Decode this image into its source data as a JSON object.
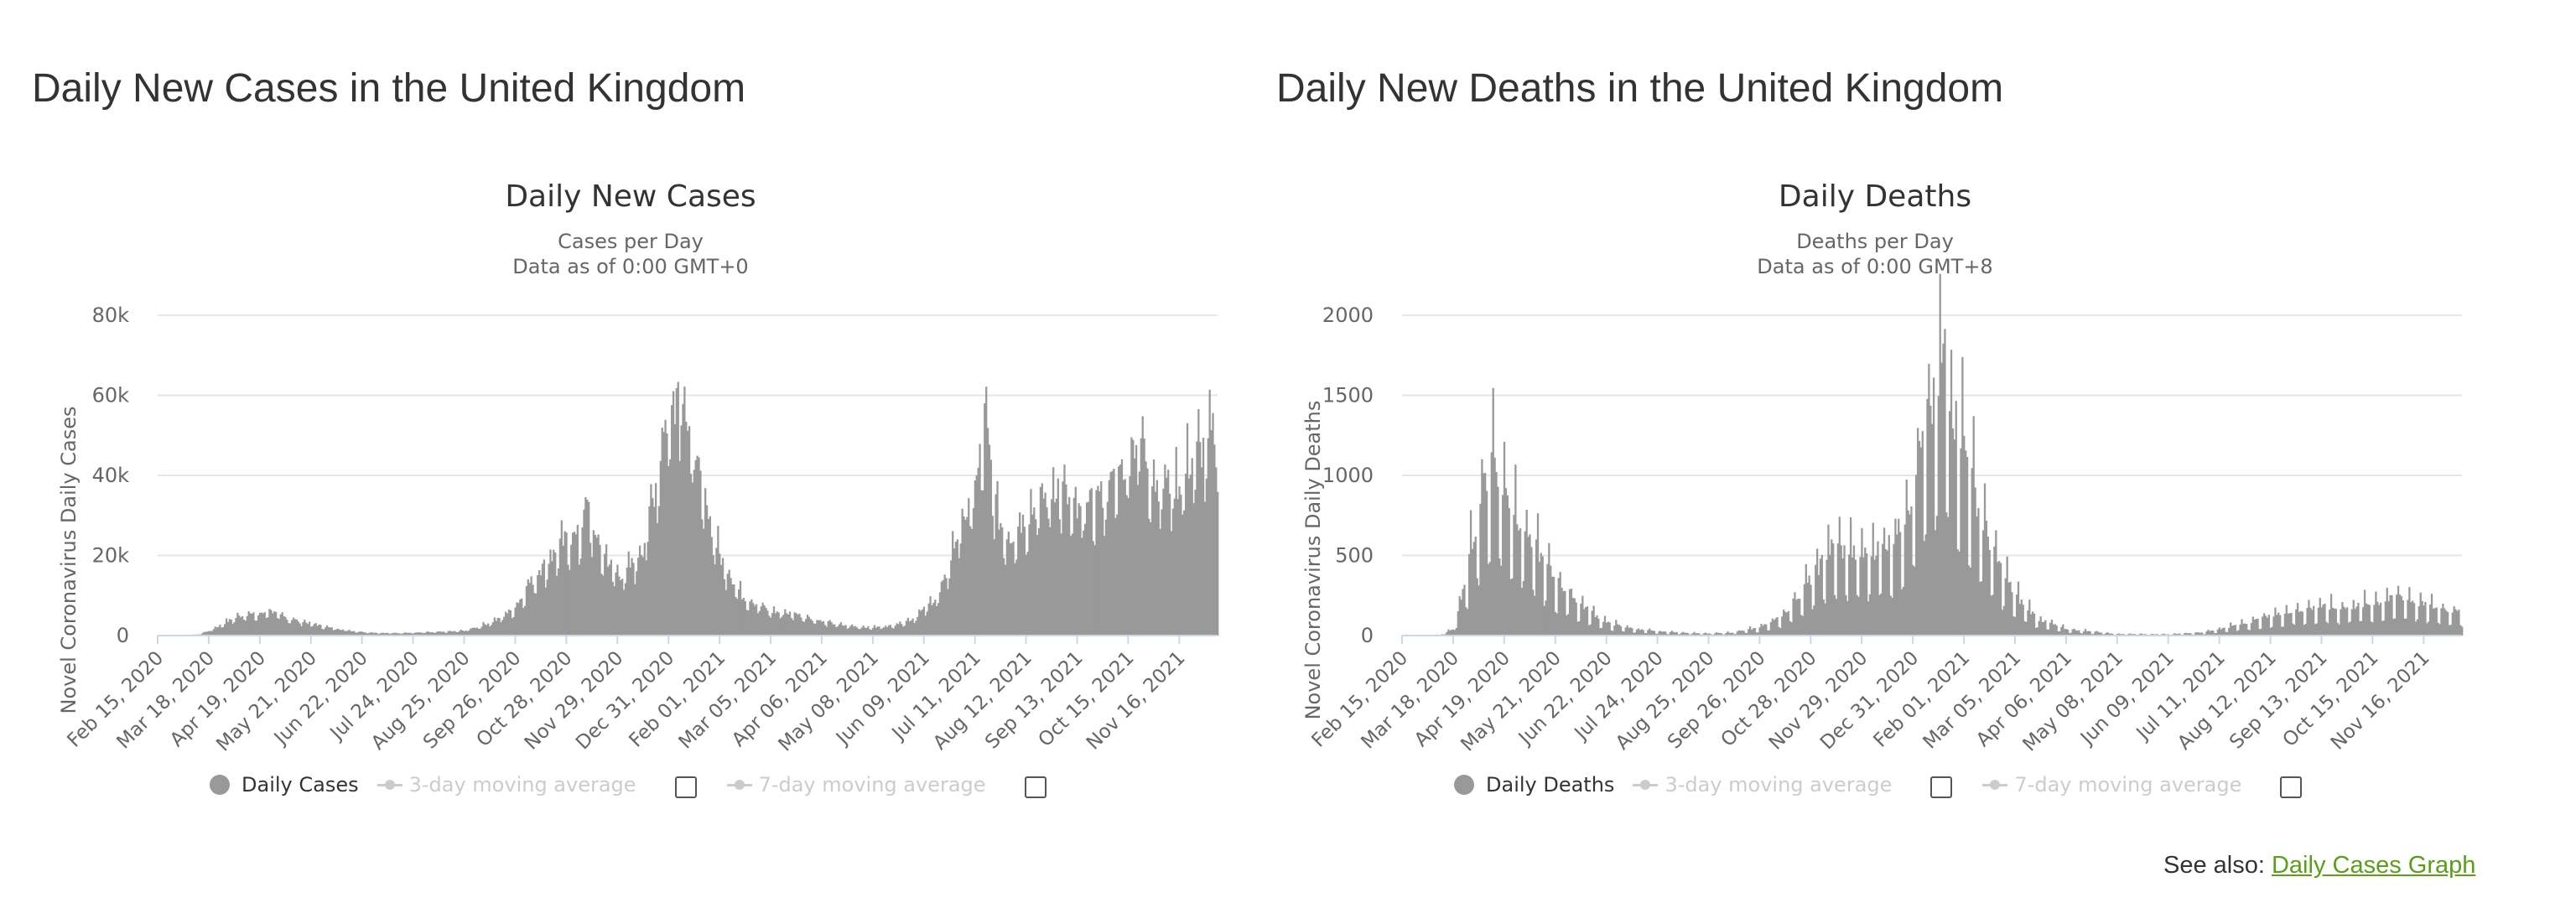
{
  "cases_panel": {
    "heading": "Daily New Cases in the United Kingdom",
    "legend": {
      "daily": "Daily Cases",
      "avg3": "3-day moving average",
      "avg7": "7-day moving average"
    }
  },
  "deaths_panel": {
    "heading": "Daily New Deaths in the United Kingdom",
    "legend": {
      "daily": "Daily Deaths",
      "avg3": "3-day moving average",
      "avg7": "7-day moving average"
    }
  },
  "see_also": {
    "prefix": "See also:",
    "link": "Daily Cases Graph"
  },
  "colors": {
    "bars": "#999999",
    "grid": "#e6e6e6",
    "axis_text": "#666666",
    "title_text": "#333333",
    "link": "#5a9e1a",
    "inactive_legend": "#cccccc"
  },
  "chart_data": [
    {
      "type": "bar",
      "title": "Daily New Cases",
      "subtitle": [
        "Cases per Day",
        "Data as of 0:00 GMT+0"
      ],
      "xlabel": "",
      "ylabel": "Novel Coronavirus Daily Cases",
      "ylim": [
        0,
        80000
      ],
      "yticks": [
        0,
        20000,
        40000,
        60000,
        80000
      ],
      "ytick_labels": [
        "0",
        "20k",
        "40k",
        "60k",
        "80k"
      ],
      "x_range": [
        "Feb 15, 2020",
        "Dec 10, 2021"
      ],
      "xtick_labels": [
        "Feb 15, 2020",
        "Mar 18, 2020",
        "Apr 19, 2020",
        "May 21, 2020",
        "Jun 22, 2020",
        "Jul 24, 2020",
        "Aug 25, 2020",
        "Sep 26, 2020",
        "Oct 28, 2020",
        "Nov 29, 2020",
        "Dec 31, 2020",
        "Feb 01, 2021",
        "Mar 05, 2021",
        "Apr 06, 2021",
        "May 08, 2021",
        "Jun 09, 2021",
        "Jul 11, 2021",
        "Aug 12, 2021",
        "Sep 13, 2021",
        "Oct 15, 2021",
        "Nov 16, 2021"
      ],
      "grid": true,
      "legend": "bottom",
      "series": [
        {
          "name": "Daily Cases",
          "points": [
            [
              "Feb 15, 2020",
              0
            ],
            [
              "Mar 01, 2020",
              20
            ],
            [
              "Mar 12, 2020",
              300
            ],
            [
              "Mar 20, 2020",
              1500
            ],
            [
              "Apr 01, 2020",
              4000
            ],
            [
              "Apr 10, 2020",
              5500
            ],
            [
              "Apr 19, 2020",
              5000
            ],
            [
              "Apr 24, 2020",
              6500
            ],
            [
              "May 01, 2020",
              5000
            ],
            [
              "May 10, 2020",
              4000
            ],
            [
              "May 21, 2020",
              3000
            ],
            [
              "Jun 01, 2020",
              2000
            ],
            [
              "Jun 15, 2020",
              1200
            ],
            [
              "Jun 22, 2020",
              900
            ],
            [
              "Jul 05, 2020",
              600
            ],
            [
              "Jul 24, 2020",
              700
            ],
            [
              "Aug 10, 2020",
              900
            ],
            [
              "Aug 25, 2020",
              1200
            ],
            [
              "Sep 05, 2020",
              2500
            ],
            [
              "Sep 15, 2020",
              4000
            ],
            [
              "Sep 26, 2020",
              7000
            ],
            [
              "Oct 05, 2020",
              13000
            ],
            [
              "Oct 15, 2020",
              18000
            ],
            [
              "Oct 28, 2020",
              24000
            ],
            [
              "Nov 05, 2020",
              25000
            ],
            [
              "Nov 10, 2020",
              33000
            ],
            [
              "Nov 15, 2020",
              24000
            ],
            [
              "Nov 29, 2020",
              15000
            ],
            [
              "Dec 05, 2020",
              16000
            ],
            [
              "Dec 15, 2020",
              22000
            ],
            [
              "Dec 22, 2020",
              36000
            ],
            [
              "Dec 29, 2020",
              53000
            ],
            [
              "Jan 04, 2021",
              60000
            ],
            [
              "Jan 08, 2021",
              68000
            ],
            [
              "Jan 12, 2021",
              52000
            ],
            [
              "Jan 20, 2021",
              38000
            ],
            [
              "Feb 01, 2021",
              20000
            ],
            [
              "Feb 15, 2021",
              10000
            ],
            [
              "Mar 05, 2021",
              6000
            ],
            [
              "Mar 20, 2021",
              5500
            ],
            [
              "Apr 06, 2021",
              3500
            ],
            [
              "Apr 20, 2021",
              2500
            ],
            [
              "May 08, 2021",
              2000
            ],
            [
              "May 20, 2021",
              2500
            ],
            [
              "Jun 01, 2021",
              4000
            ],
            [
              "Jun 09, 2021",
              6500
            ],
            [
              "Jun 20, 2021",
              11000
            ],
            [
              "Jul 01, 2021",
              27000
            ],
            [
              "Jul 11, 2021",
              35000
            ],
            [
              "Jul 17, 2021",
              54000
            ],
            [
              "Jul 25, 2021",
              30000
            ],
            [
              "Aug 01, 2021",
              24000
            ],
            [
              "Aug 12, 2021",
              30000
            ],
            [
              "Aug 25, 2021",
              35000
            ],
            [
              "Sep 01, 2021",
              38000
            ],
            [
              "Sep 13, 2021",
              30000
            ],
            [
              "Sep 25, 2021",
              34000
            ],
            [
              "Oct 01, 2021",
              36000
            ],
            [
              "Oct 15, 2021",
              44000
            ],
            [
              "Oct 21, 2021",
              51000
            ],
            [
              "Nov 01, 2021",
              38000
            ],
            [
              "Nov 16, 2021",
              38000
            ],
            [
              "Nov 25, 2021",
              45000
            ],
            [
              "Dec 05, 2021",
              48000
            ],
            [
              "Dec 10, 2021",
              54000
            ]
          ]
        }
      ]
    },
    {
      "type": "bar",
      "title": "Daily Deaths",
      "subtitle": [
        "Deaths per Day",
        "Data as of 0:00 GMT+8"
      ],
      "xlabel": "",
      "ylabel": "Novel Coronavirus Daily Deaths",
      "ylim": [
        0,
        2000
      ],
      "yticks": [
        0,
        500,
        1000,
        1500,
        2000
      ],
      "ytick_labels": [
        "0",
        "500",
        "1000",
        "1500",
        "2000"
      ],
      "x_range": [
        "Feb 15, 2020",
        "Dec 10, 2021"
      ],
      "xtick_labels": [
        "Feb 15, 2020",
        "Mar 18, 2020",
        "Apr 19, 2020",
        "May 21, 2020",
        "Jun 22, 2020",
        "Jul 24, 2020",
        "Aug 25, 2020",
        "Sep 26, 2020",
        "Oct 28, 2020",
        "Nov 29, 2020",
        "Dec 31, 2020",
        "Feb 01, 2021",
        "Mar 05, 2021",
        "Apr 06, 2021",
        "May 08, 2021",
        "Jun 09, 2021",
        "Jul 11, 2021",
        "Aug 12, 2021",
        "Sep 13, 2021",
        "Oct 15, 2021",
        "Nov 16, 2021"
      ],
      "grid": true,
      "legend": "bottom",
      "series": [
        {
          "name": "Daily Deaths",
          "points": [
            [
              "Feb 15, 2020",
              0
            ],
            [
              "Mar 10, 2020",
              5
            ],
            [
              "Mar 18, 2020",
              40
            ],
            [
              "Mar 25, 2020",
              300
            ],
            [
              "Apr 01, 2020",
              700
            ],
            [
              "Apr 08, 2020",
              1000
            ],
            [
              "Apr 12, 2020",
              1150
            ],
            [
              "Apr 19, 2020",
              900
            ],
            [
              "Apr 25, 2020",
              800
            ],
            [
              "May 05, 2020",
              600
            ],
            [
              "May 21, 2020",
              350
            ],
            [
              "Jun 05, 2020",
              200
            ],
            [
              "Jun 22, 2020",
              80
            ],
            [
              "Jul 10, 2020",
              40
            ],
            [
              "Jul 24, 2020",
              25
            ],
            [
              "Aug 25, 2020",
              12
            ],
            [
              "Sep 10, 2020",
              20
            ],
            [
              "Sep 26, 2020",
              50
            ],
            [
              "Oct 10, 2020",
              120
            ],
            [
              "Oct 28, 2020",
              350
            ],
            [
              "Nov 10, 2020",
              550
            ],
            [
              "Nov 29, 2020",
              500
            ],
            [
              "Dec 10, 2020",
              550
            ],
            [
              "Dec 20, 2020",
              600
            ],
            [
              "Dec 31, 2020",
              900
            ],
            [
              "Jan 08, 2021",
              1300
            ],
            [
              "Jan 15, 2021",
              1500
            ],
            [
              "Jan 20, 2021",
              1800
            ],
            [
              "Jan 25, 2021",
              1400
            ],
            [
              "Feb 01, 2021",
              1200
            ],
            [
              "Feb 10, 2021",
              800
            ],
            [
              "Feb 20, 2021",
              500
            ],
            [
              "Mar 05, 2021",
              250
            ],
            [
              "Mar 20, 2021",
              100
            ],
            [
              "Apr 06, 2021",
              40
            ],
            [
              "May 08, 2021",
              10
            ],
            [
              "Jun 09, 2021",
              8
            ],
            [
              "Jul 01, 2021",
              20
            ],
            [
              "Jul 11, 2021",
              40
            ],
            [
              "Aug 01, 2021",
              90
            ],
            [
              "Aug 12, 2021",
              120
            ],
            [
              "Aug 25, 2021",
              150
            ],
            [
              "Sep 13, 2021",
              180
            ],
            [
              "Sep 25, 2021",
              170
            ],
            [
              "Oct 15, 2021",
              200
            ],
            [
              "Oct 28, 2021",
              230
            ],
            [
              "Nov 01, 2021",
              250
            ],
            [
              "Nov 16, 2021",
              190
            ],
            [
              "Dec 01, 2021",
              160
            ],
            [
              "Dec 10, 2021",
              140
            ]
          ]
        }
      ]
    }
  ]
}
